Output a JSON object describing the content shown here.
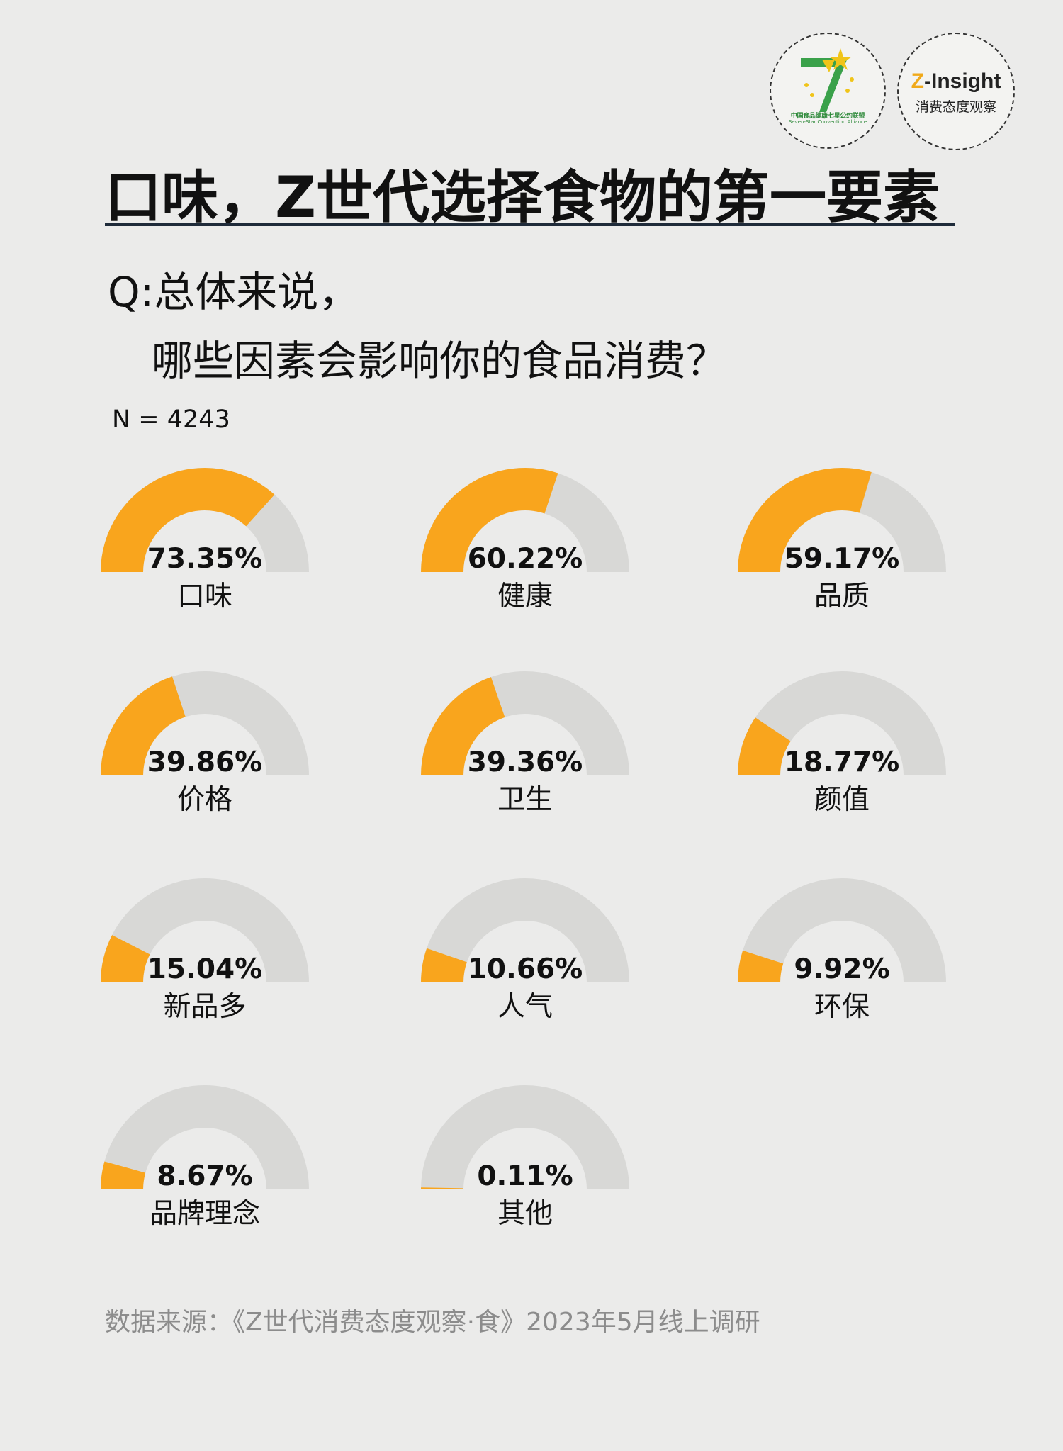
{
  "logos": {
    "alliance": {
      "name_cn": "中国食品健康七星公约联盟",
      "name_en": "Seven-Star Convention Alliance",
      "icon": "seven-star-logo-icon"
    },
    "zinsight": {
      "title_z": "Z",
      "title_rest": "-Insight",
      "subtitle": "消费态度观察"
    }
  },
  "title": "口味，Z世代选择食物的第一要素",
  "question": {
    "line1": "Q:总体来说，",
    "line2": "哪些因素会影响你的食品消费？"
  },
  "sample_size": "N = 4243",
  "source": "数据来源：《Z世代消费态度观察·食》2023年5月线上调研",
  "colors": {
    "filled": "#f9a51d",
    "track": "#d8d8d6",
    "background": "#ebebea",
    "title_rule": "#1f2b3a"
  },
  "chart_data": {
    "type": "gauge",
    "range": [
      0,
      100
    ],
    "unit": "%",
    "items": [
      {
        "label": "口味",
        "value": 73.35,
        "display": "73.35%"
      },
      {
        "label": "健康",
        "value": 60.22,
        "display": "60.22%"
      },
      {
        "label": "品质",
        "value": 59.17,
        "display": "59.17%"
      },
      {
        "label": "价格",
        "value": 39.86,
        "display": "39.86%"
      },
      {
        "label": "卫生",
        "value": 39.36,
        "display": "39.36%"
      },
      {
        "label": "颜值",
        "value": 18.77,
        "display": "18.77%"
      },
      {
        "label": "新品多",
        "value": 15.04,
        "display": "15.04%"
      },
      {
        "label": "人气",
        "value": 10.66,
        "display": "10.66%"
      },
      {
        "label": "环保",
        "value": 9.92,
        "display": "9.92%"
      },
      {
        "label": "品牌理念",
        "value": 8.67,
        "display": "8.67%"
      },
      {
        "label": "其他",
        "value": 0.11,
        "display": "0.11%"
      }
    ]
  }
}
